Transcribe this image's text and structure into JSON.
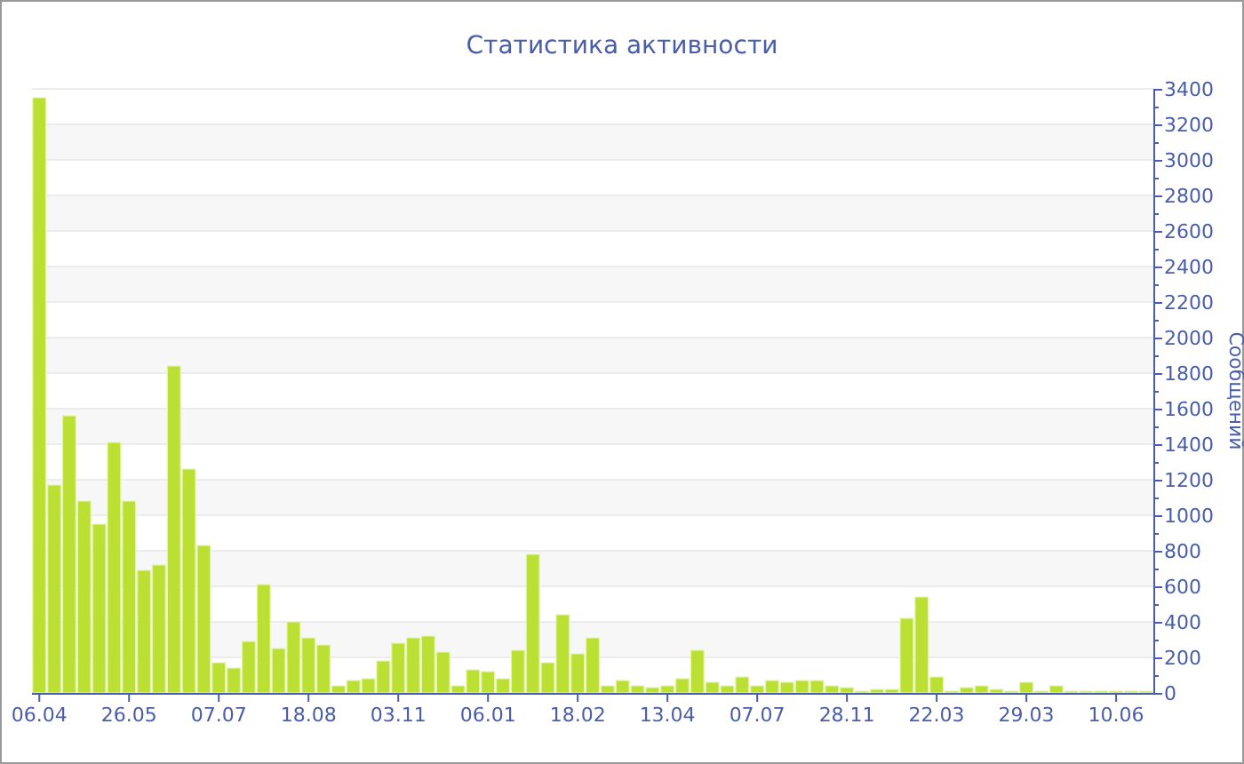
{
  "chart_data": {
    "type": "bar",
    "title": "Статистика активности",
    "ylabel": "Сообщений",
    "categories": [
      "06.04",
      null,
      null,
      null,
      null,
      null,
      "26.05",
      null,
      null,
      null,
      null,
      null,
      "07.07",
      null,
      null,
      null,
      null,
      null,
      "18.08",
      null,
      null,
      null,
      null,
      null,
      "03.11",
      null,
      null,
      null,
      null,
      null,
      "06.01",
      null,
      null,
      null,
      null,
      null,
      "18.02",
      null,
      null,
      null,
      null,
      null,
      "13.04",
      null,
      null,
      null,
      null,
      null,
      "07.07",
      null,
      null,
      null,
      null,
      null,
      "28.11",
      null,
      null,
      null,
      null,
      null,
      "22.03",
      null,
      null,
      null,
      null,
      null,
      "29.03",
      null,
      null,
      null,
      null,
      null,
      "10.06",
      null,
      null
    ],
    "values": [
      3350,
      1170,
      1560,
      1080,
      950,
      1410,
      1080,
      690,
      720,
      1840,
      1260,
      830,
      170,
      140,
      290,
      610,
      250,
      400,
      310,
      270,
      40,
      70,
      80,
      180,
      280,
      310,
      320,
      230,
      40,
      130,
      120,
      80,
      240,
      780,
      170,
      440,
      220,
      310,
      40,
      70,
      40,
      30,
      40,
      80,
      240,
      60,
      40,
      90,
      40,
      70,
      60,
      70,
      70,
      40,
      30,
      10,
      20,
      20,
      420,
      540,
      90,
      10,
      30,
      40,
      20,
      10,
      60,
      10,
      40,
      10,
      10,
      10,
      10,
      10,
      10
    ],
    "color": "#bbe033",
    "ylim": [
      0,
      3400
    ],
    "yticks": [
      0,
      {
        "value": 100,
        "label": null
      },
      200,
      {
        "value": 300,
        "label": null
      },
      400,
      {
        "value": 500,
        "label": null
      },
      600,
      {
        "value": 700,
        "label": null
      },
      800,
      {
        "value": 900,
        "label": null
      },
      1000,
      {
        "value": 1100,
        "label": null
      },
      1200,
      {
        "value": 1300,
        "label": null
      },
      1400,
      {
        "value": 1500,
        "label": null
      },
      1600,
      {
        "value": 1700,
        "label": null
      },
      1800,
      {
        "value": 1900,
        "label": null
      },
      2000,
      {
        "value": 2100,
        "label": null
      },
      2200,
      {
        "value": 2300,
        "label": null
      },
      2400,
      {
        "value": 2500,
        "label": null
      },
      2600,
      {
        "value": 2700,
        "label": null
      },
      2800,
      {
        "value": 2900,
        "label": null
      },
      3000,
      {
        "value": 3100,
        "label": null
      },
      3200,
      {
        "value": 3300,
        "label": null
      },
      3400
    ],
    "grid": "y"
  }
}
